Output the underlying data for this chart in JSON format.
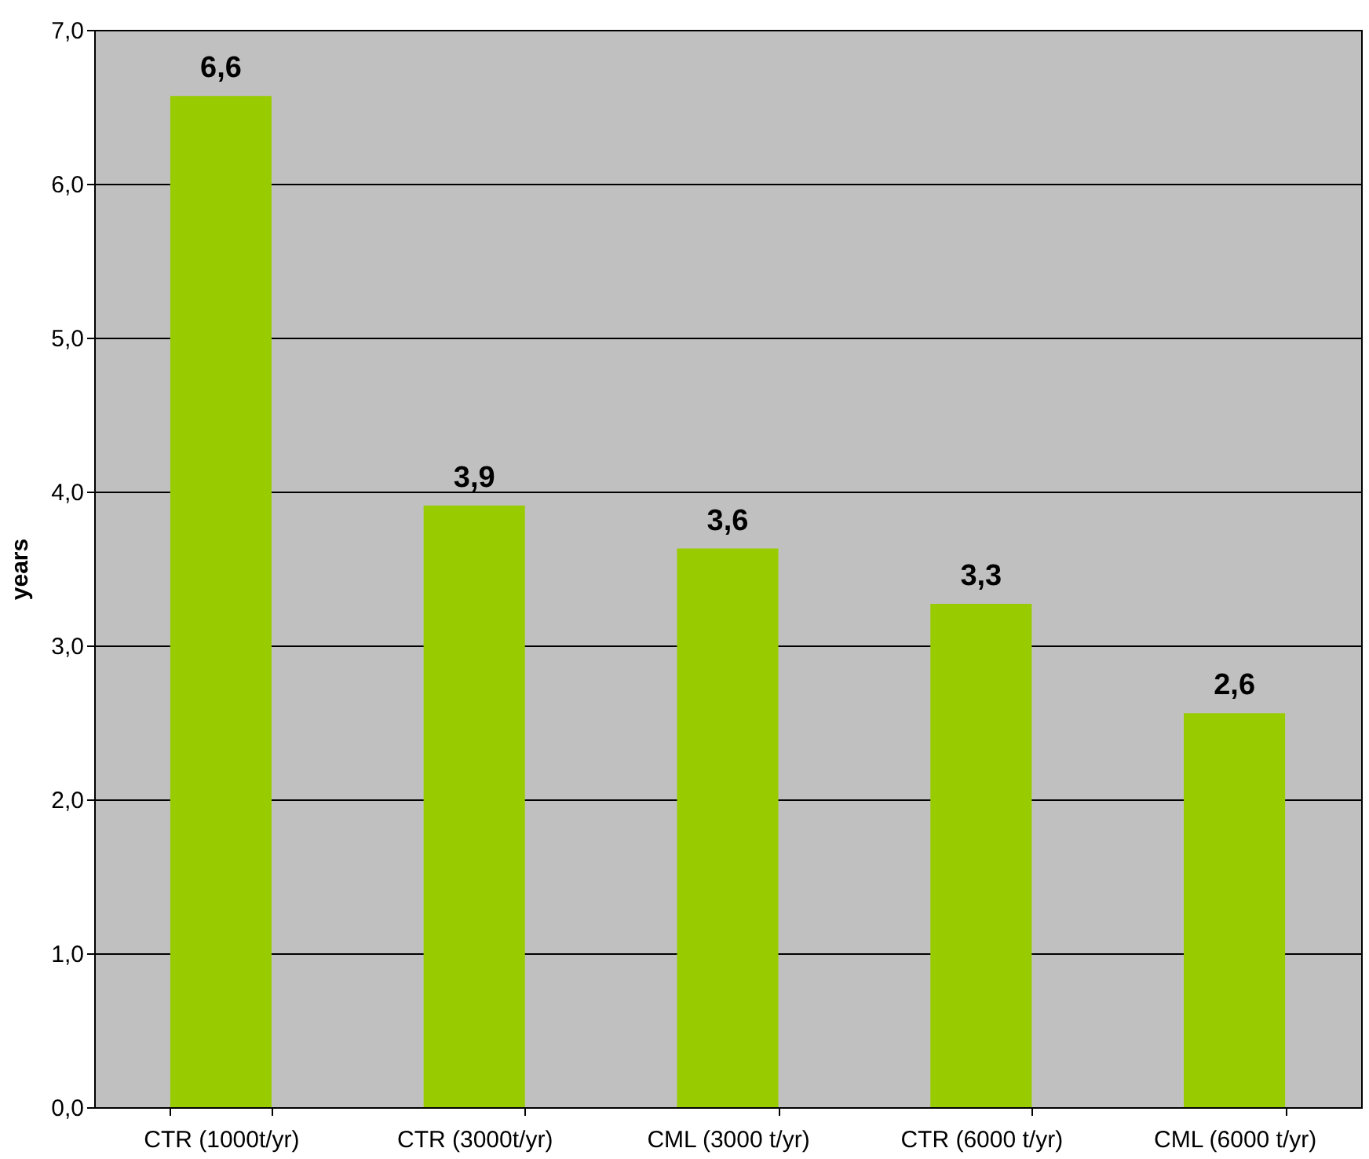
{
  "chart_data": {
    "type": "bar",
    "ylabel": "years",
    "categories": [
      "CTR (1000t/yr)",
      "CTR (3000t/yr)",
      "CML (3000 t/yr)",
      "CTR (6000 t/yr)",
      "CML (6000 t/yr)"
    ],
    "values": [
      6.57,
      3.91,
      3.63,
      3.27,
      2.56
    ],
    "value_labels": [
      "6,6",
      "3,9",
      "3,6",
      "3,3",
      "2,6"
    ],
    "color": "#99cc00",
    "ylim": [
      0,
      7
    ],
    "yticks": [
      {
        "value": 0,
        "label": "0,0"
      },
      {
        "value": 1,
        "label": "1,0"
      },
      {
        "value": 2,
        "label": "2,0"
      },
      {
        "value": 3,
        "label": "3,0"
      },
      {
        "value": 4,
        "label": "4,0"
      },
      {
        "value": 5,
        "label": "5,0"
      },
      {
        "value": 6,
        "label": "6,0"
      },
      {
        "value": 7,
        "label": "7,0"
      }
    ],
    "grid": "y"
  }
}
